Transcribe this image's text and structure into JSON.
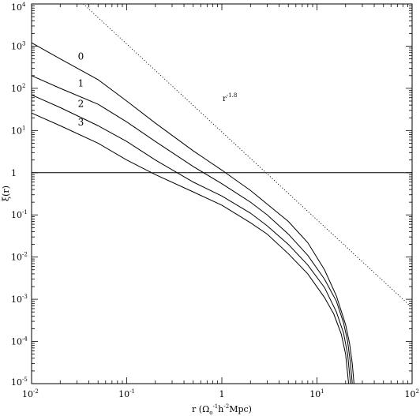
{
  "chart_data": {
    "type": "line",
    "title": "",
    "xlabel": "r (Ω₀⁻¹h⁻²Mpc)",
    "ylabel": "ξ(r)",
    "x_scale": "log",
    "y_scale": "log",
    "xlim": [
      0.01,
      100
    ],
    "ylim": [
      1e-05,
      10000
    ],
    "x_tick_labels": [
      {
        "value": 0.01,
        "mant": "10",
        "exp": "-2"
      },
      {
        "value": 0.1,
        "mant": "10",
        "exp": "-1"
      },
      {
        "value": 1,
        "mant": "1",
        "exp": ""
      },
      {
        "value": 10,
        "mant": "10",
        "exp": "1"
      },
      {
        "value": 100,
        "mant": "10",
        "exp": "2"
      }
    ],
    "y_tick_labels": [
      {
        "value": 1e-05,
        "mant": "10",
        "exp": "-5"
      },
      {
        "value": 0.0001,
        "mant": "10",
        "exp": "-4"
      },
      {
        "value": 0.001,
        "mant": "10",
        "exp": "-3"
      },
      {
        "value": 0.01,
        "mant": "10",
        "exp": "-2"
      },
      {
        "value": 0.1,
        "mant": "10",
        "exp": "-1"
      },
      {
        "value": 1,
        "mant": "1",
        "exp": ""
      },
      {
        "value": 10,
        "mant": "10",
        "exp": "1"
      },
      {
        "value": 100,
        "mant": "10",
        "exp": "2"
      },
      {
        "value": 1000,
        "mant": "10",
        "exp": "3"
      },
      {
        "value": 10000,
        "mant": "10",
        "exp": "4"
      }
    ],
    "reference_line": {
      "y": 1
    },
    "power_law": {
      "label": "r⁻¹·⁸",
      "base": "r",
      "exp": "-1.8",
      "x": [
        0.035,
        100
      ],
      "y": [
        10000,
        0.00063
      ]
    },
    "series": [
      {
        "label": "0",
        "x": [
          0.01,
          0.02,
          0.05,
          0.1,
          0.2,
          0.5,
          1,
          1.5,
          2,
          3,
          5,
          8,
          12,
          16,
          20,
          22,
          23.5,
          24.5
        ],
        "y": [
          1200,
          500,
          160,
          50,
          15,
          3.3,
          1.15,
          0.6,
          0.38,
          0.18,
          0.07,
          0.022,
          0.005,
          0.0012,
          0.00025,
          9e-05,
          3e-05,
          1e-05
        ]
      },
      {
        "label": "1",
        "x": [
          0.01,
          0.02,
          0.05,
          0.1,
          0.2,
          0.5,
          1,
          2,
          3,
          5,
          8,
          12,
          16,
          19,
          21,
          22.5,
          23.5
        ],
        "y": [
          200,
          100,
          42,
          16,
          5.5,
          1.4,
          0.55,
          0.2,
          0.1,
          0.035,
          0.011,
          0.003,
          0.0009,
          0.00028,
          0.0001,
          3e-05,
          1e-05
        ]
      },
      {
        "label": "2",
        "x": [
          0.01,
          0.02,
          0.05,
          0.1,
          0.2,
          0.5,
          1,
          2,
          3,
          5,
          8,
          12,
          16,
          19,
          21,
          22.5
        ],
        "y": [
          70,
          35,
          13,
          5.5,
          2,
          0.6,
          0.28,
          0.11,
          0.055,
          0.02,
          0.0065,
          0.0019,
          0.0005,
          0.00016,
          5e-05,
          1e-05
        ]
      },
      {
        "label": "3",
        "x": [
          0.01,
          0.02,
          0.05,
          0.1,
          0.2,
          0.5,
          1,
          2,
          3,
          5,
          8,
          12,
          15,
          18,
          20,
          21.5
        ],
        "y": [
          26,
          13,
          5,
          2,
          0.9,
          0.35,
          0.17,
          0.065,
          0.035,
          0.012,
          0.004,
          0.0011,
          0.00045,
          0.00015,
          5e-05,
          1e-05
        ]
      }
    ]
  }
}
